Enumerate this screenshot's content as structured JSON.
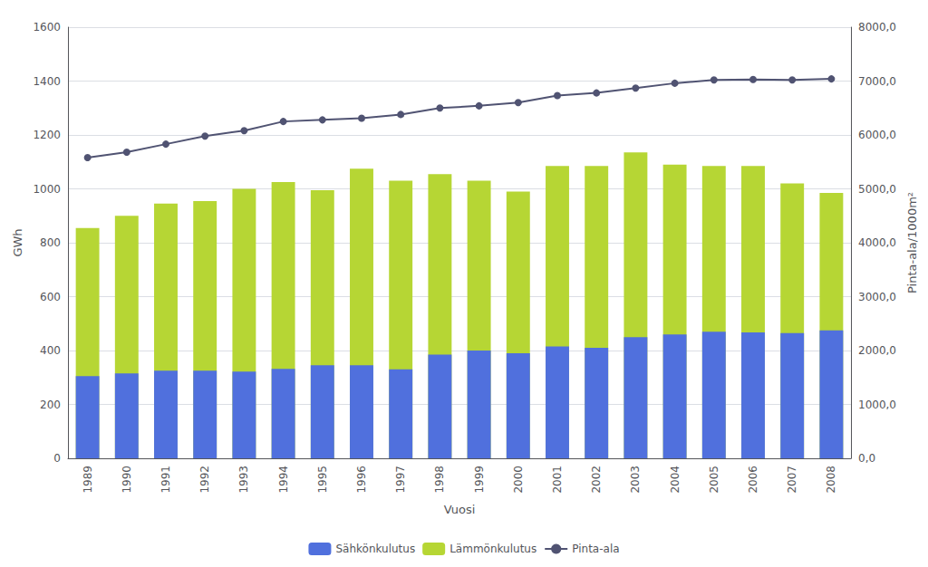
{
  "chart_data": {
    "type": "bar",
    "xlabel": "Vuosi",
    "ylabel": "GWh",
    "y2label": "Pinta-ala/1000m²",
    "categories": [
      "1989",
      "1990",
      "1991",
      "1992",
      "1993",
      "1994",
      "1995",
      "1996",
      "1997",
      "1998",
      "1999",
      "2000",
      "2001",
      "2002",
      "2003",
      "2004",
      "2005",
      "2006",
      "2007",
      "2008"
    ],
    "series": [
      {
        "name": "Sähkönkulutus",
        "type": "bar",
        "values": [
          305,
          315,
          325,
          325,
          322,
          332,
          345,
          345,
          330,
          385,
          400,
          390,
          415,
          410,
          450,
          460,
          470,
          467,
          465,
          475
        ]
      },
      {
        "name": "Lämmönkulutus",
        "type": "bar",
        "values": [
          855,
          900,
          945,
          955,
          1000,
          1025,
          995,
          1075,
          1030,
          1055,
          1030,
          990,
          1085,
          1085,
          1135,
          1090,
          1085,
          1085,
          1020,
          985
        ]
      },
      {
        "name": "Pinta-ala",
        "type": "line",
        "axis": "y2",
        "marker": "circle",
        "values": [
          5580,
          5680,
          5830,
          5980,
          6080,
          6250,
          6280,
          6310,
          6380,
          6500,
          6540,
          6600,
          6730,
          6780,
          6870,
          6960,
          7020,
          7030,
          7020,
          7040
        ]
      }
    ],
    "ylim": [
      0,
      1600
    ],
    "yticks": [
      0,
      200,
      400,
      600,
      800,
      1000,
      1200,
      1400,
      1600
    ],
    "y2lim": [
      0,
      8000
    ],
    "y2ticks": [
      {
        "value": 0,
        "label": "0,0"
      },
      {
        "value": 1000,
        "label": "1000,0"
      },
      {
        "value": 2000,
        "label": "2000,0"
      },
      {
        "value": 3000,
        "label": "3000,0"
      },
      {
        "value": 4000,
        "label": "4000,0"
      },
      {
        "value": 5000,
        "label": "5000,0"
      },
      {
        "value": 6000,
        "label": "6000,0"
      },
      {
        "value": 7000,
        "label": "7000,0"
      },
      {
        "value": 8000,
        "label": "8000,0"
      }
    ],
    "grid": true,
    "legend": "bottom"
  }
}
